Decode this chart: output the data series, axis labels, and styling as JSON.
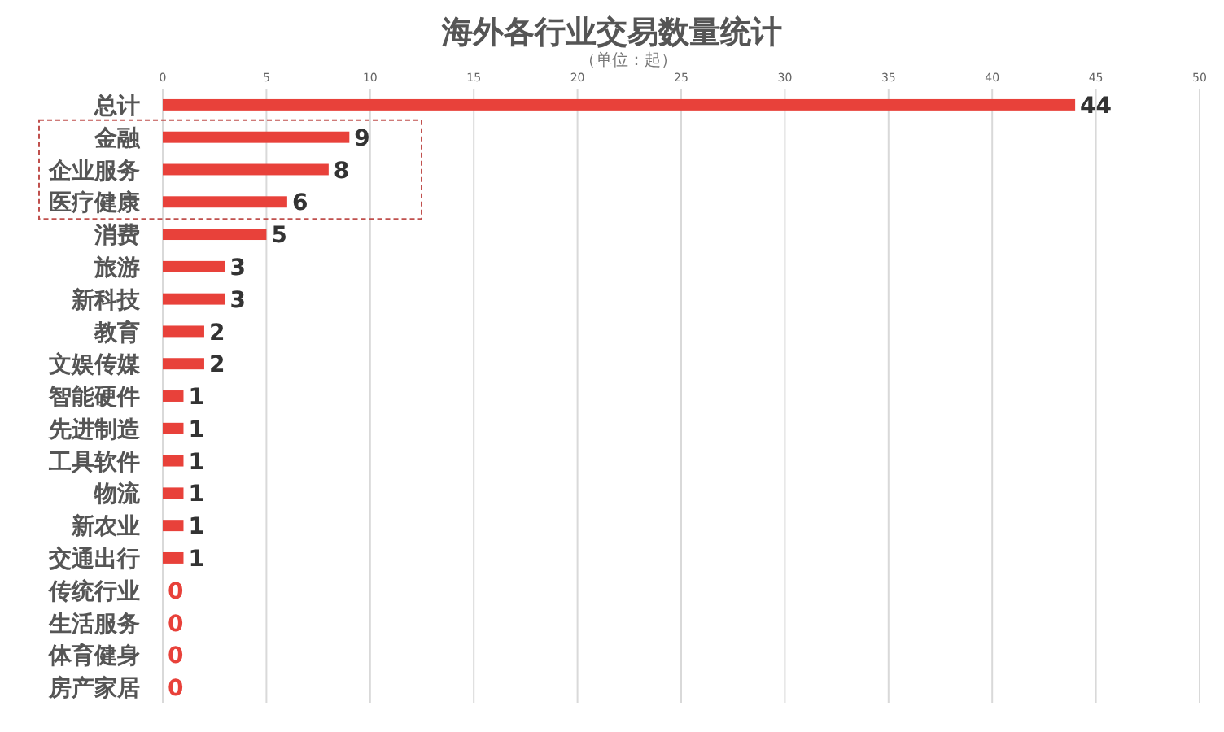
{
  "chart_data": {
    "type": "bar",
    "orientation": "horizontal",
    "title": "海外各行业交易数量统计",
    "subtitle": "（单位：起）",
    "categories": [
      "总计",
      "金融",
      "企业服务",
      "医疗健康",
      "消费",
      "旅游",
      "新科技",
      "教育",
      "文娱传媒",
      "智能硬件",
      "先进制造",
      "工具软件",
      "物流",
      "新农业",
      "交通出行",
      "传统行业",
      "生活服务",
      "体育健身",
      "房产家居"
    ],
    "values": [
      44,
      9,
      8,
      6,
      5,
      3,
      3,
      2,
      2,
      1,
      1,
      1,
      1,
      1,
      1,
      0,
      0,
      0,
      0
    ],
    "color": "#e8413a",
    "xlim": [
      0,
      50
    ],
    "xticks": [
      0,
      5,
      10,
      15,
      20,
      25,
      30,
      35,
      40,
      45,
      50
    ],
    "grid": "x",
    "data_labels": true
  }
}
